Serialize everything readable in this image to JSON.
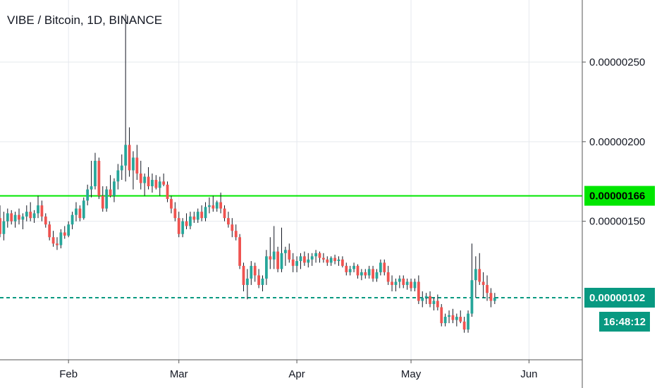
{
  "title": "VIBE / Bitcoin, 1D, BINANCE",
  "colors": {
    "up": "#26a69a",
    "down": "#ef5350",
    "wick": "#131722",
    "grid": "#e6e9ee",
    "resistance": "#00e600",
    "price_line": "#089981",
    "axis_line": "#555555"
  },
  "badges": {
    "resistance_label": "0.00000166",
    "price_label": "0.00000102",
    "countdown": "16:48:12"
  },
  "chart_data": {
    "type": "candlestick",
    "title": "VIBE / Bitcoin, 1D, BINANCE",
    "xlabel": "",
    "ylabel": "",
    "x_range": [
      "2020-01-14",
      "2020-06-15"
    ],
    "ylim": [
      6.3e-07,
      2.89e-06
    ],
    "x_ticks": [
      {
        "label": "Feb",
        "date": "2020-02-01"
      },
      {
        "label": "Mar",
        "date": "2020-03-01"
      },
      {
        "label": "Apr",
        "date": "2020-04-01"
      },
      {
        "label": "May",
        "date": "2020-05-01"
      },
      {
        "label": "Jun",
        "date": "2020-06-01"
      }
    ],
    "y_ticks": [
      "0.00000250",
      "0.00000200",
      "0.00000150"
    ],
    "grid": true,
    "horizontal_lines": [
      {
        "label": "0.00000166",
        "value": 1.66e-06,
        "style": "solid"
      },
      {
        "label": "0.00000102",
        "value": 1.02e-06,
        "style": "dashed"
      }
    ],
    "start_date": "2020-01-14",
    "series": [
      {
        "values": [
          [
            1.52,
            1.6,
            1.4,
            1.42
          ],
          [
            1.42,
            1.56,
            1.38,
            1.5
          ],
          [
            1.5,
            1.58,
            1.46,
            1.55
          ],
          [
            1.55,
            1.57,
            1.48,
            1.5
          ],
          [
            1.5,
            1.56,
            1.46,
            1.54
          ],
          [
            1.54,
            1.58,
            1.48,
            1.51
          ],
          [
            1.51,
            1.55,
            1.45,
            1.53
          ],
          [
            1.53,
            1.6,
            1.5,
            1.56
          ],
          [
            1.56,
            1.62,
            1.5,
            1.52
          ],
          [
            1.52,
            1.57,
            1.49,
            1.55
          ],
          [
            1.55,
            1.66,
            1.52,
            1.6
          ],
          [
            1.6,
            1.63,
            1.5,
            1.53
          ],
          [
            1.53,
            1.55,
            1.46,
            1.48
          ],
          [
            1.48,
            1.5,
            1.38,
            1.4
          ],
          [
            1.4,
            1.44,
            1.34,
            1.36
          ],
          [
            1.36,
            1.4,
            1.32,
            1.35
          ],
          [
            1.35,
            1.45,
            1.33,
            1.43
          ],
          [
            1.43,
            1.47,
            1.39,
            1.41
          ],
          [
            1.41,
            1.5,
            1.4,
            1.48
          ],
          [
            1.48,
            1.56,
            1.45,
            1.54
          ],
          [
            1.54,
            1.62,
            1.5,
            1.58
          ],
          [
            1.58,
            1.6,
            1.5,
            1.52
          ],
          [
            1.52,
            1.65,
            1.51,
            1.63
          ],
          [
            1.63,
            1.73,
            1.6,
            1.7
          ],
          [
            1.7,
            1.88,
            1.65,
            1.72
          ],
          [
            1.72,
            1.93,
            1.7,
            1.88
          ],
          [
            1.88,
            1.9,
            1.64,
            1.66
          ],
          [
            1.66,
            1.72,
            1.56,
            1.58
          ],
          [
            1.58,
            1.72,
            1.56,
            1.7
          ],
          [
            1.7,
            1.79,
            1.65,
            1.66
          ],
          [
            1.66,
            1.77,
            1.62,
            1.75
          ],
          [
            1.75,
            1.86,
            1.7,
            1.82
          ],
          [
            1.82,
            1.92,
            1.76,
            1.85
          ],
          [
            1.85,
            2.8,
            1.75,
            1.98
          ],
          [
            1.98,
            2.09,
            1.78,
            1.82
          ],
          [
            1.82,
            1.94,
            1.7,
            1.9
          ],
          [
            1.9,
            1.98,
            1.76,
            1.8
          ],
          [
            1.8,
            1.88,
            1.7,
            1.74
          ],
          [
            1.74,
            1.8,
            1.66,
            1.78
          ],
          [
            1.78,
            1.84,
            1.7,
            1.72
          ],
          [
            1.72,
            1.8,
            1.68,
            1.76
          ],
          [
            1.76,
            1.79,
            1.7,
            1.71
          ],
          [
            1.71,
            1.78,
            1.66,
            1.75
          ],
          [
            1.75,
            1.8,
            1.72,
            1.73
          ],
          [
            1.73,
            1.75,
            1.62,
            1.64
          ],
          [
            1.64,
            1.66,
            1.55,
            1.58
          ],
          [
            1.58,
            1.62,
            1.5,
            1.52
          ],
          [
            1.52,
            1.56,
            1.4,
            1.42
          ],
          [
            1.42,
            1.52,
            1.4,
            1.5
          ],
          [
            1.5,
            1.55,
            1.45,
            1.47
          ],
          [
            1.47,
            1.56,
            1.45,
            1.53
          ],
          [
            1.53,
            1.56,
            1.49,
            1.51
          ],
          [
            1.51,
            1.58,
            1.49,
            1.56
          ],
          [
            1.56,
            1.6,
            1.5,
            1.52
          ],
          [
            1.52,
            1.62,
            1.5,
            1.59
          ],
          [
            1.59,
            1.65,
            1.55,
            1.6
          ],
          [
            1.6,
            1.66,
            1.56,
            1.58
          ],
          [
            1.58,
            1.63,
            1.56,
            1.62
          ],
          [
            1.62,
            1.68,
            1.55,
            1.58
          ],
          [
            1.58,
            1.6,
            1.5,
            1.52
          ],
          [
            1.52,
            1.56,
            1.46,
            1.48
          ],
          [
            1.48,
            1.52,
            1.4,
            1.44
          ],
          [
            1.44,
            1.48,
            1.38,
            1.4
          ],
          [
            1.4,
            1.42,
            1.2,
            1.22
          ],
          [
            1.22,
            1.24,
            1.06,
            1.1
          ],
          [
            1.1,
            1.2,
            1.01,
            1.14
          ],
          [
            1.14,
            1.25,
            1.1,
            1.22
          ],
          [
            1.22,
            1.24,
            1.12,
            1.16
          ],
          [
            1.16,
            1.2,
            1.08,
            1.1
          ],
          [
            1.1,
            1.16,
            1.06,
            1.14
          ],
          [
            1.14,
            1.32,
            1.1,
            1.28
          ],
          [
            1.28,
            1.4,
            1.2,
            1.26
          ],
          [
            1.26,
            1.47,
            1.2,
            1.31
          ],
          [
            1.31,
            1.34,
            1.18,
            1.2
          ],
          [
            1.2,
            1.46,
            1.18,
            1.3
          ],
          [
            1.3,
            1.34,
            1.22,
            1.32
          ],
          [
            1.32,
            1.36,
            1.24,
            1.26
          ],
          [
            1.26,
            1.3,
            1.18,
            1.22
          ],
          [
            1.22,
            1.28,
            1.18,
            1.25
          ],
          [
            1.25,
            1.3,
            1.2,
            1.28
          ],
          [
            1.28,
            1.31,
            1.22,
            1.24
          ],
          [
            1.24,
            1.3,
            1.21,
            1.26
          ],
          [
            1.26,
            1.3,
            1.22,
            1.28
          ],
          [
            1.28,
            1.32,
            1.24,
            1.3
          ],
          [
            1.3,
            1.31,
            1.24,
            1.27
          ],
          [
            1.27,
            1.3,
            1.24,
            1.26
          ],
          [
            1.26,
            1.28,
            1.22,
            1.24
          ],
          [
            1.24,
            1.28,
            1.22,
            1.27
          ],
          [
            1.27,
            1.29,
            1.23,
            1.25
          ],
          [
            1.25,
            1.28,
            1.22,
            1.26
          ],
          [
            1.26,
            1.28,
            1.21,
            1.22
          ],
          [
            1.22,
            1.24,
            1.16,
            1.18
          ],
          [
            1.18,
            1.22,
            1.16,
            1.2
          ],
          [
            1.2,
            1.24,
            1.18,
            1.22
          ],
          [
            1.22,
            1.23,
            1.14,
            1.16
          ],
          [
            1.16,
            1.2,
            1.13,
            1.18
          ],
          [
            1.18,
            1.2,
            1.14,
            1.16
          ],
          [
            1.16,
            1.22,
            1.14,
            1.2
          ],
          [
            1.2,
            1.22,
            1.12,
            1.14
          ],
          [
            1.14,
            1.2,
            1.12,
            1.18
          ],
          [
            1.18,
            1.26,
            1.16,
            1.24
          ],
          [
            1.24,
            1.26,
            1.16,
            1.18
          ],
          [
            1.18,
            1.22,
            1.1,
            1.12
          ],
          [
            1.12,
            1.16,
            1.06,
            1.1
          ],
          [
            1.1,
            1.14,
            1.06,
            1.12
          ],
          [
            1.12,
            1.16,
            1.08,
            1.14
          ],
          [
            1.14,
            1.16,
            1.08,
            1.1
          ],
          [
            1.1,
            1.14,
            1.07,
            1.12
          ],
          [
            1.12,
            1.14,
            1.06,
            1.08
          ],
          [
            1.08,
            1.14,
            1.06,
            1.12
          ],
          [
            1.12,
            1.16,
            0.98,
            1.0
          ],
          [
            1.0,
            1.06,
            0.96,
            1.02
          ],
          [
            1.02,
            1.05,
            0.98,
            1.03
          ],
          [
            1.03,
            1.06,
            0.96,
            0.98
          ],
          [
            0.98,
            1.02,
            0.94,
            1.0
          ],
          [
            1.0,
            1.04,
            0.94,
            0.96
          ],
          [
            0.96,
            0.98,
            0.84,
            0.86
          ],
          [
            0.86,
            0.92,
            0.84,
            0.9
          ],
          [
            0.9,
            0.94,
            0.86,
            0.91
          ],
          [
            0.91,
            0.95,
            0.86,
            0.88
          ],
          [
            0.88,
            0.92,
            0.84,
            0.9
          ],
          [
            0.9,
            0.94,
            0.86,
            0.87
          ],
          [
            0.87,
            0.9,
            0.8,
            0.82
          ],
          [
            0.82,
            0.94,
            0.8,
            0.92
          ],
          [
            0.92,
            1.36,
            0.9,
            1.13
          ],
          [
            1.13,
            1.28,
            1.02,
            1.2
          ],
          [
            1.2,
            1.3,
            1.1,
            1.12
          ],
          [
            1.12,
            1.18,
            1.02,
            1.1
          ],
          [
            1.1,
            1.16,
            1.0,
            1.05
          ],
          [
            1.05,
            1.08,
            0.96,
            1.0
          ],
          [
            1.0,
            1.05,
            0.98,
            1.02
          ]
        ]
      }
    ]
  }
}
